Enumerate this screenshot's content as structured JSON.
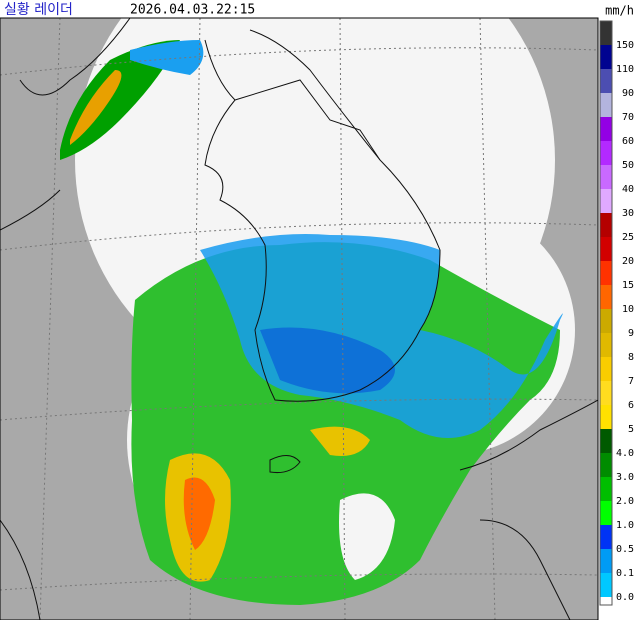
{
  "header": {
    "title": "실황 레이더",
    "timestamp": "2026.04.03.22:15",
    "unit": "mm/h"
  },
  "legend": {
    "items": [
      {
        "label": "150",
        "color": "#333333"
      },
      {
        "label": "110",
        "color": "#000390"
      },
      {
        "label": "90",
        "color": "#4c4eb1"
      },
      {
        "label": "70",
        "color": "#b3b4de"
      },
      {
        "label": "60",
        "color": "#9300e4"
      },
      {
        "label": "50",
        "color": "#b329ff"
      },
      {
        "label": "40",
        "color": "#c969ff"
      },
      {
        "label": "30",
        "color": "#e0a9ff"
      },
      {
        "label": "25",
        "color": "#b40000"
      },
      {
        "label": "20",
        "color": "#d20000"
      },
      {
        "label": "15",
        "color": "#ff3200"
      },
      {
        "label": "10",
        "color": "#ff6600"
      },
      {
        "label": "9",
        "color": "#ccaa00"
      },
      {
        "label": "8",
        "color": "#e0b900"
      },
      {
        "label": "7",
        "color": "#f9cd00"
      },
      {
        "label": "6",
        "color": "#ffdc1f"
      },
      {
        "label": "5",
        "color": "#ffe100"
      },
      {
        "label": "4.0",
        "color": "#005a00"
      },
      {
        "label": "3.0",
        "color": "#008c00"
      },
      {
        "label": "2.0",
        "color": "#00be00"
      },
      {
        "label": "1.0",
        "color": "#00ff00"
      },
      {
        "label": "0.5",
        "color": "#0033f5"
      },
      {
        "label": "0.1",
        "color": "#009bf5"
      },
      {
        "label": "0.0",
        "color": "#00c8ff"
      }
    ]
  }
}
